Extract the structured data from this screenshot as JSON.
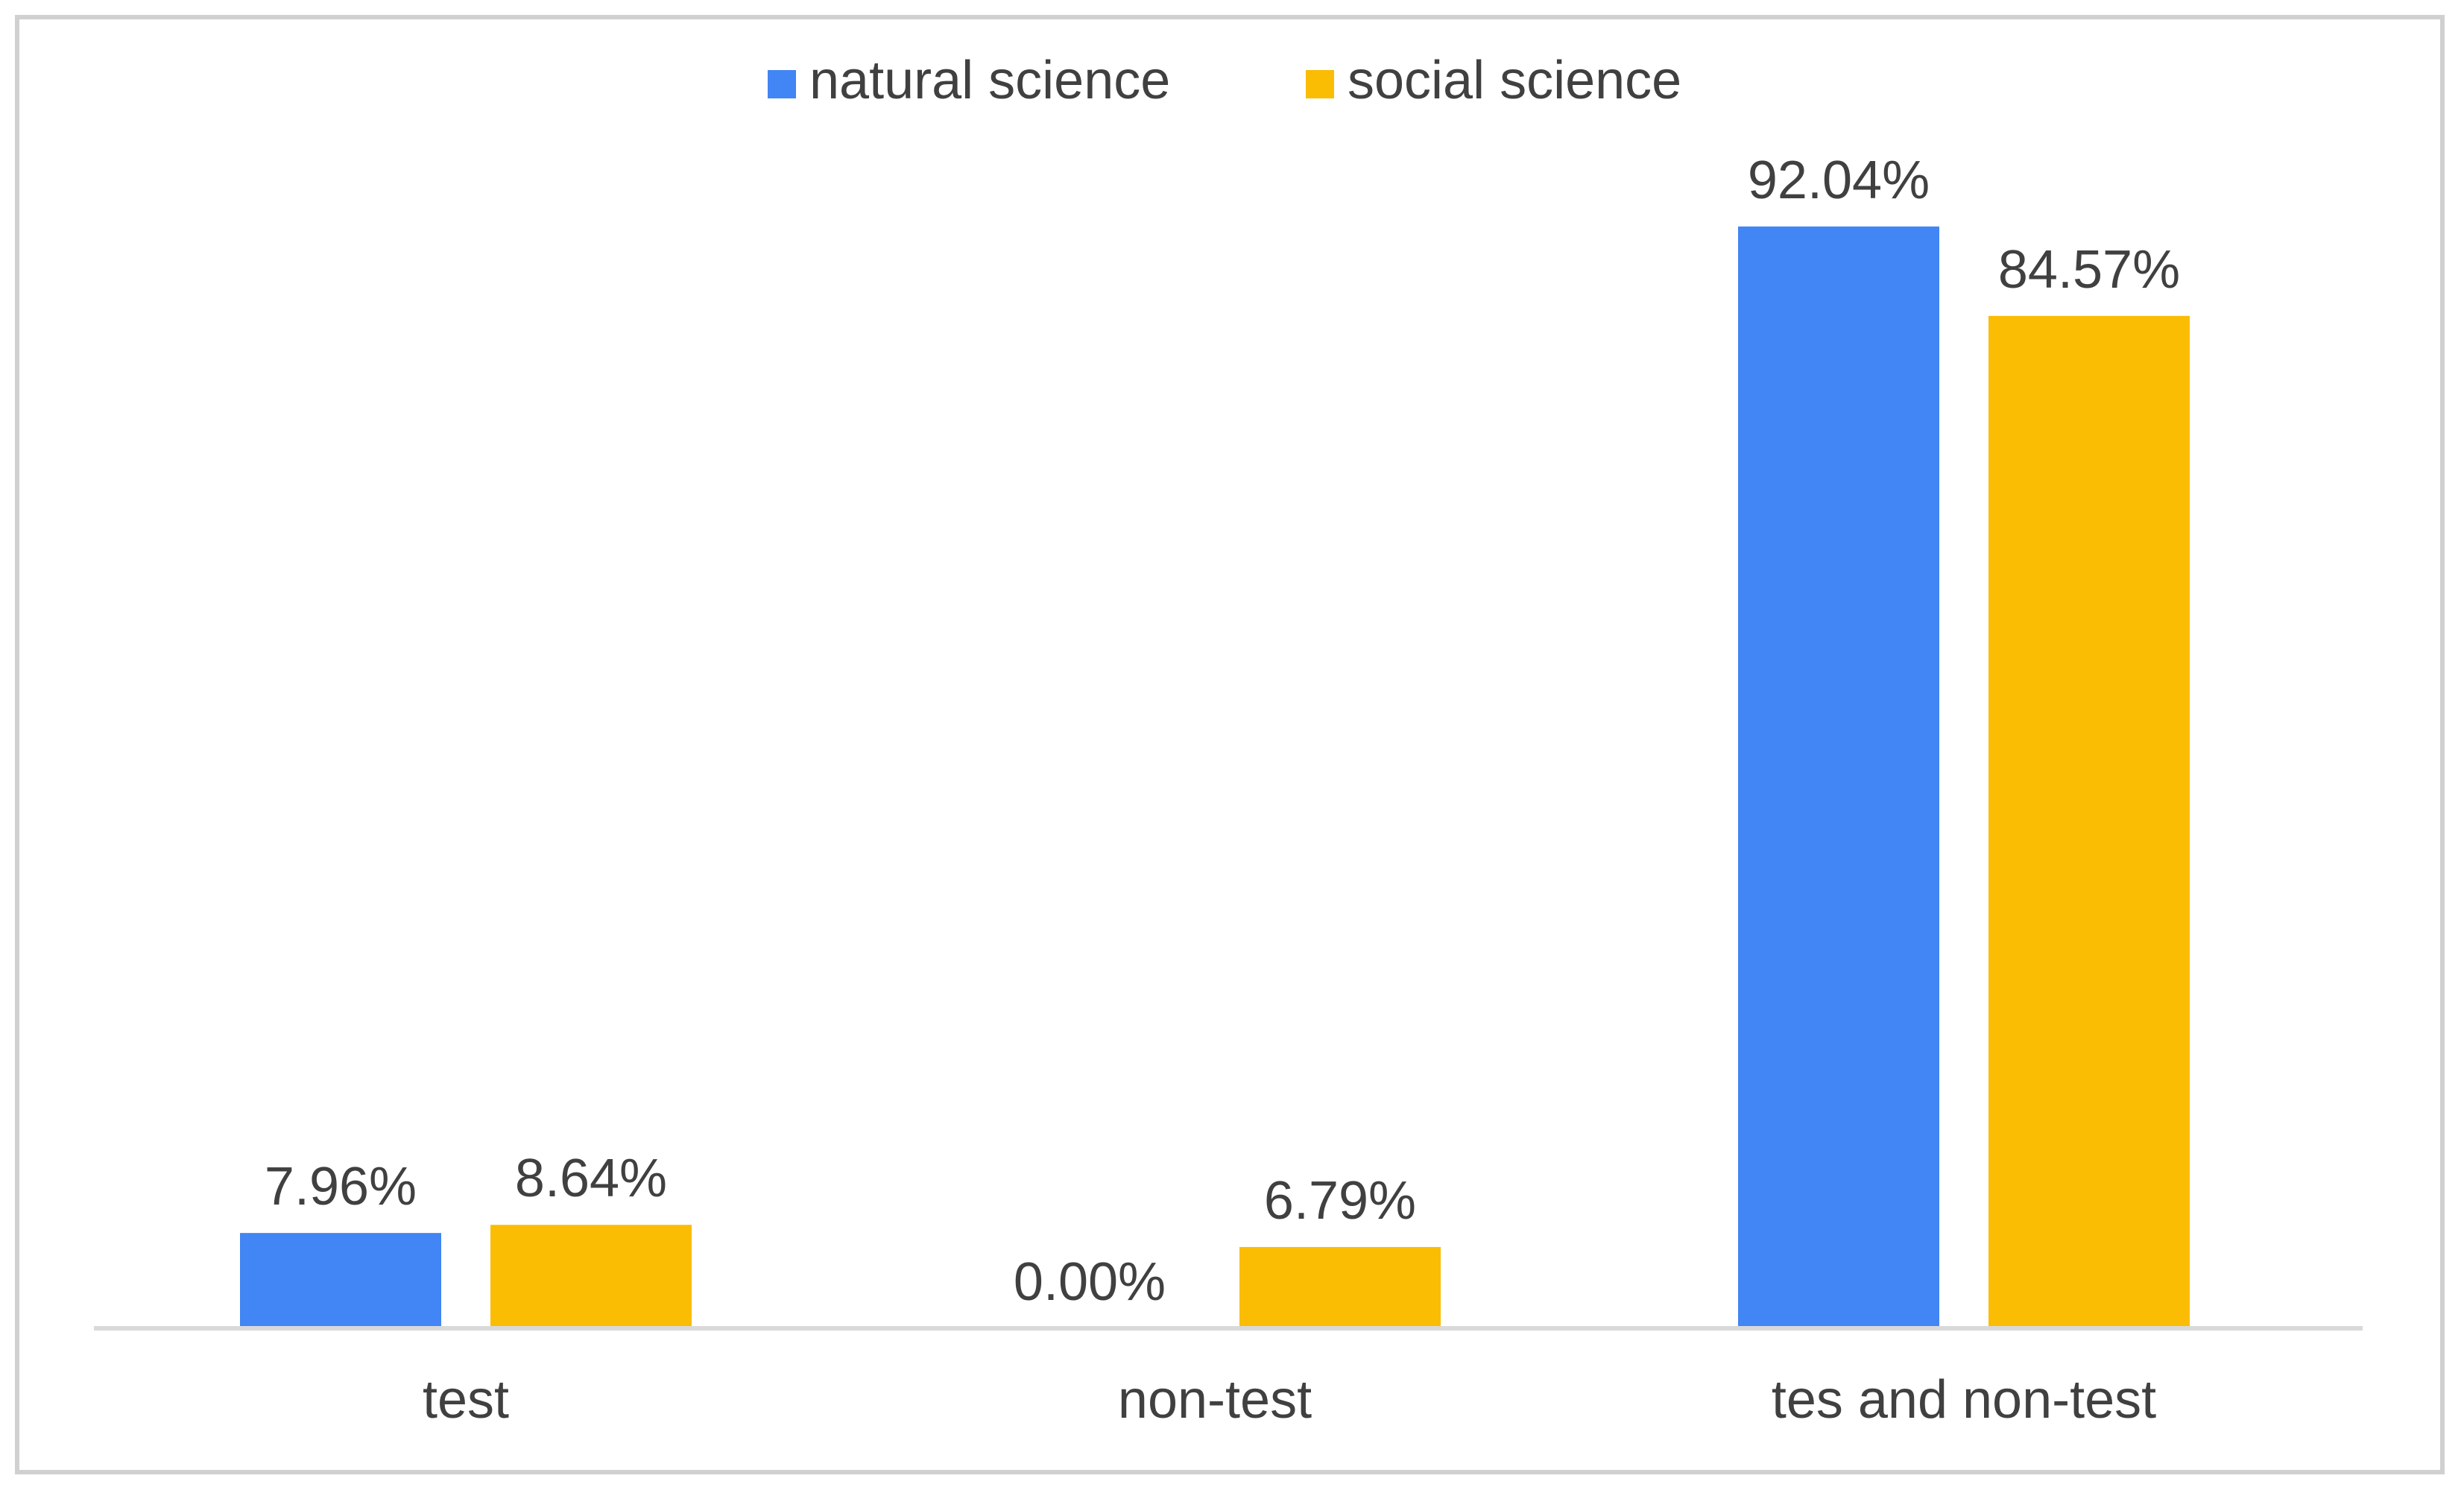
{
  "chart_data": {
    "type": "bar",
    "categories": [
      "test",
      "non-test",
      "tes and non-test"
    ],
    "series": [
      {
        "name": "natural science",
        "values": [
          7.96,
          0.0,
          92.04
        ],
        "labels": [
          "7.96%",
          "0.00%",
          "92.04%"
        ],
        "color": "#4285f4"
      },
      {
        "name": "social science",
        "values": [
          8.64,
          6.79,
          84.57
        ],
        "labels": [
          "8.64%",
          "6.79%",
          "84.57%"
        ],
        "color": "#fbbc04"
      }
    ],
    "ylim": [
      0,
      100
    ],
    "unit": "%",
    "grid": false,
    "legend": "top-center",
    "axis_color": "#d9d9d9"
  }
}
